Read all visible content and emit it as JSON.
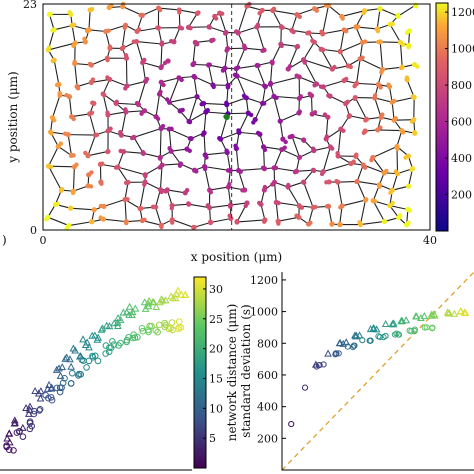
{
  "chart_data": [
    {
      "type": "scatter",
      "panel": "network",
      "xlabel": "x position (μm)",
      "ylabel": "y position (μm)",
      "x_ticks": [
        "0",
        "40"
      ],
      "y_ticks": [
        "0",
        "23"
      ],
      "xlim": [
        0,
        40
      ],
      "ylim": [
        0,
        23
      ],
      "colorbar": {
        "ticks": [
          "200",
          "400",
          "600",
          "800",
          "1000",
          "1200"
        ],
        "range": [
          0,
          1250
        ]
      },
      "grid": false,
      "dashed_line_x": 19.5,
      "partial_label": ")"
    },
    {
      "type": "scatter",
      "panel": "distance-colored",
      "colorbar": {
        "label": "network distance (μm)",
        "ticks": [
          "5",
          "10",
          "15",
          "20",
          "25",
          "30"
        ],
        "range": [
          0,
          32
        ]
      },
      "series": [
        {
          "marker": "triangle",
          "x": [
            0.05,
            0.1,
            0.15,
            0.2,
            0.25,
            0.3,
            0.35,
            0.4,
            0.45,
            0.5,
            0.55,
            0.6,
            0.65,
            0.7,
            0.75,
            0.8,
            0.85,
            0.9,
            0.95
          ],
          "y": [
            0.16,
            0.23,
            0.3,
            0.37,
            0.43,
            0.49,
            0.54,
            0.59,
            0.63,
            0.67,
            0.71,
            0.74,
            0.77,
            0.8,
            0.82,
            0.84,
            0.86,
            0.87,
            0.88
          ]
        },
        {
          "marker": "circle",
          "x": [
            0.05,
            0.1,
            0.15,
            0.2,
            0.25,
            0.3,
            0.35,
            0.4,
            0.45,
            0.5,
            0.55,
            0.6,
            0.65,
            0.7,
            0.75,
            0.8,
            0.85,
            0.9,
            0.95
          ],
          "y": [
            0.1,
            0.17,
            0.23,
            0.29,
            0.35,
            0.4,
            0.45,
            0.49,
            0.53,
            0.57,
            0.6,
            0.63,
            0.65,
            0.67,
            0.69,
            0.7,
            0.71,
            0.72,
            0.73
          ]
        }
      ]
    },
    {
      "type": "scatter",
      "panel": "std",
      "ylabel": "standard deviation (s)",
      "y_ticks": [
        "200",
        "400",
        "600",
        "800",
        "1000",
        "1200"
      ],
      "ylim": [
        0,
        1250
      ],
      "xlim": [
        0,
        1250
      ],
      "reference_line": "dashed",
      "series": [
        {
          "marker": "triangle",
          "x": [
            220,
            300,
            400,
            500,
            600,
            700,
            800,
            900,
            1000,
            1100,
            1180
          ],
          "y": [
            665,
            735,
            800,
            850,
            890,
            920,
            945,
            965,
            980,
            990,
            998
          ]
        },
        {
          "marker": "circle",
          "x": [
            60,
            150,
            250,
            350,
            450,
            550,
            650,
            750,
            850,
            950
          ],
          "y": [
            290,
            520,
            660,
            735,
            780,
            815,
            840,
            860,
            880,
            895
          ]
        }
      ]
    }
  ]
}
